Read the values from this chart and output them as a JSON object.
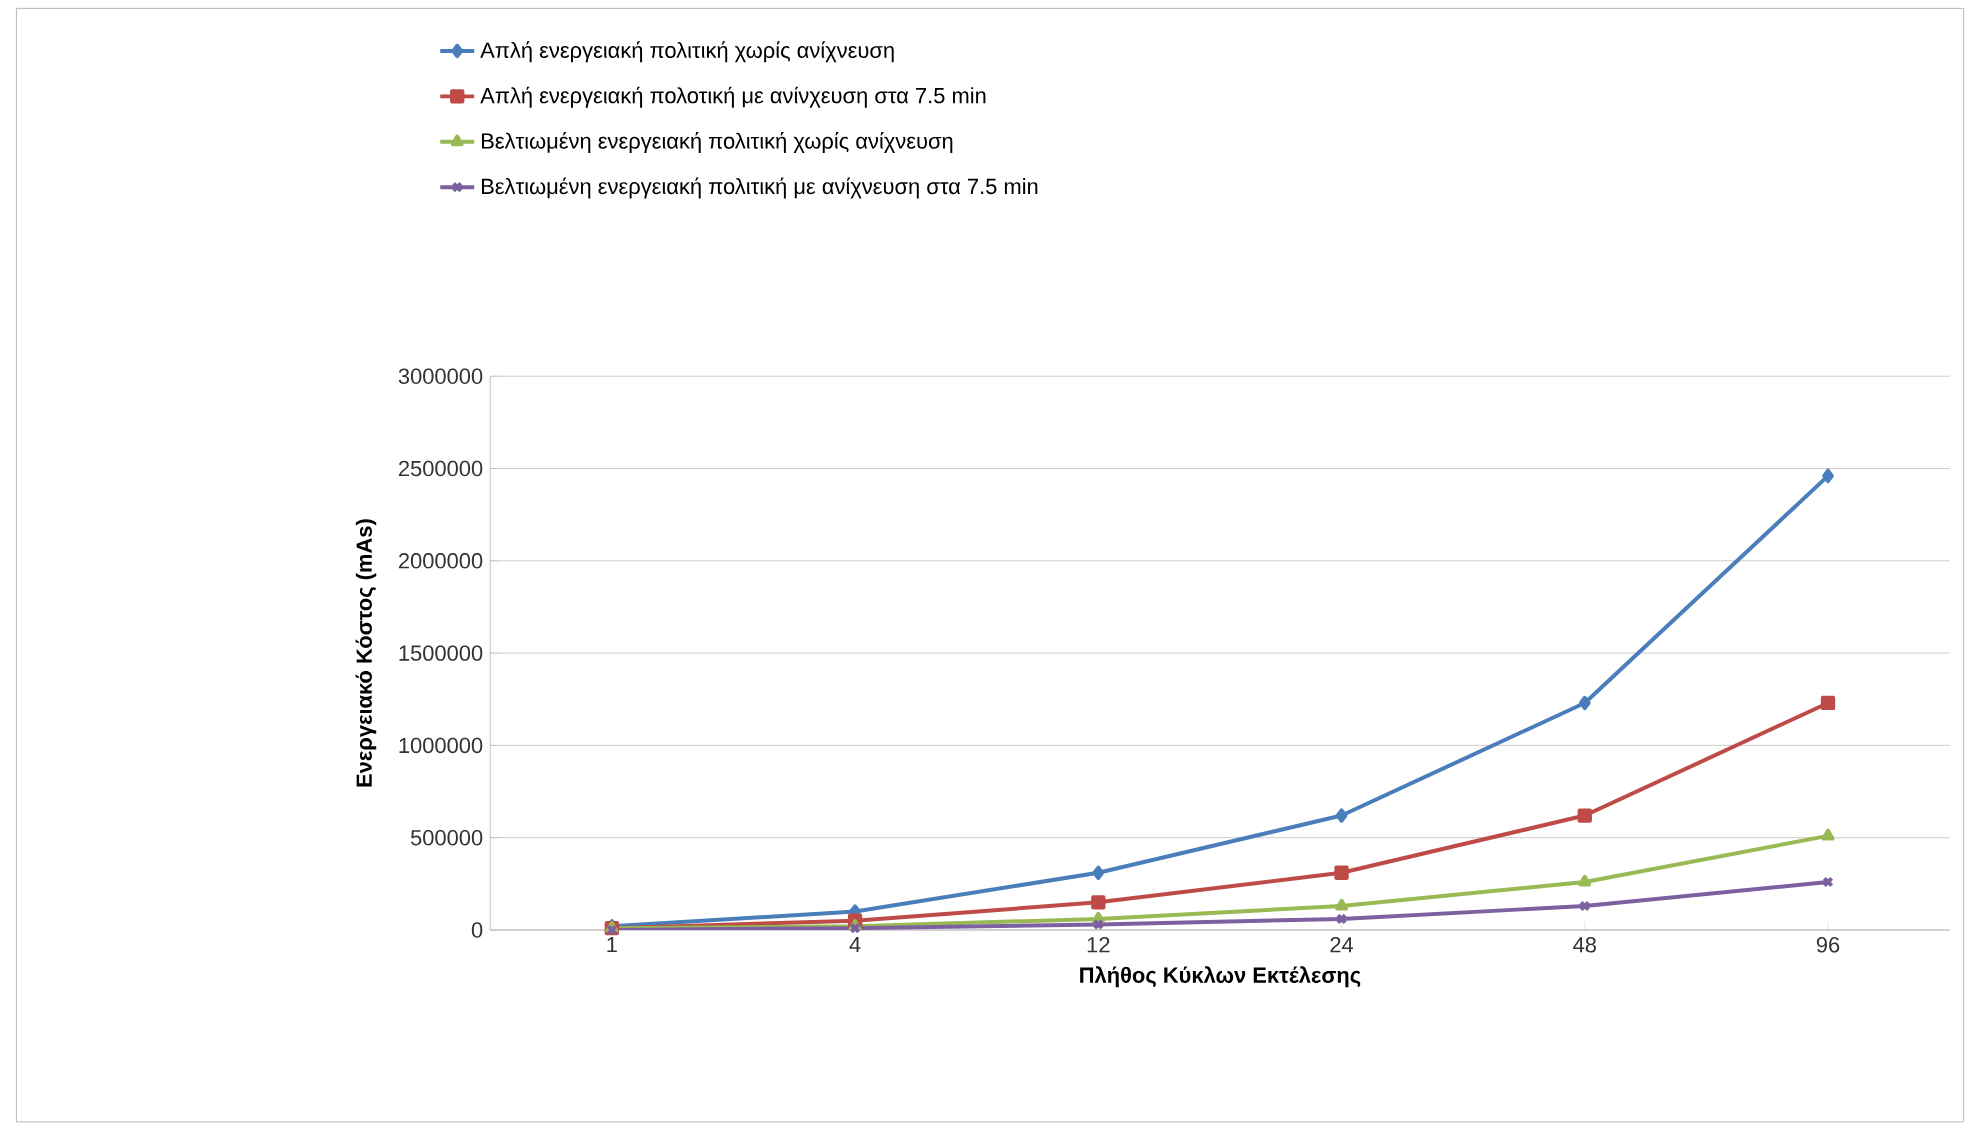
{
  "chart_data": {
    "type": "line",
    "xlabel": "Πλήθος Κύκλων Εκτέλεσης",
    "ylabel": "Ενεργειακό Κόστος (mAs)",
    "categories": [
      "1",
      "4",
      "12",
      "24",
      "48",
      "96"
    ],
    "series": [
      {
        "name": "Απλή ενεργειακή πολιτική χωρίς ανίχνευση",
        "color": "#4a7ebb",
        "marker": "diamond",
        "values": [
          20000,
          100000,
          310000,
          620000,
          1230000,
          2460000
        ]
      },
      {
        "name": "Απλή ενεργειακή πολοτική με ανίνχευση στα 7.5 min",
        "color": "#be4b48",
        "marker": "square",
        "values": [
          10000,
          50000,
          150000,
          310000,
          620000,
          1230000
        ]
      },
      {
        "name": "Βελτιωμένη ενεργειακή πολιτική χωρίς ανίχνευση",
        "color": "#98b954",
        "marker": "triangle",
        "values": [
          10000,
          20000,
          60000,
          130000,
          260000,
          510000
        ]
      },
      {
        "name": "Βελτιωμένη ενεργειακή πολιτική με ανίχνευση στα 7.5 min",
        "color": "#7d60a0",
        "marker": "cross",
        "values": [
          0,
          10000,
          30000,
          60000,
          130000,
          260000
        ]
      }
    ],
    "ylim": [
      0,
      3000000
    ],
    "yticks": [
      0,
      500000,
      1000000,
      1500000,
      2000000,
      2500000,
      3000000
    ],
    "grid": "y",
    "legend": "top",
    "line_style": "solid"
  }
}
